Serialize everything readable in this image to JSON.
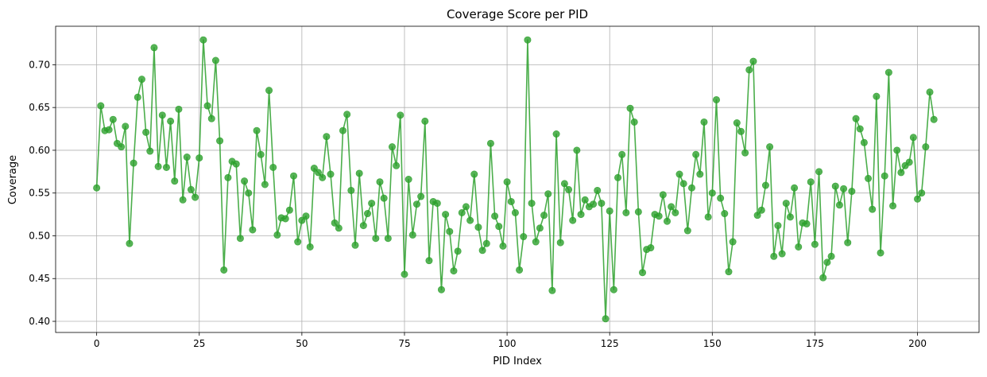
{
  "chart_data": {
    "type": "line",
    "title": "Coverage Score per PID",
    "xlabel": "PID Index",
    "ylabel": "Coverage",
    "xlim": [
      -10,
      215
    ],
    "ylim": [
      0.387,
      0.745
    ],
    "xticks": [
      0,
      25,
      50,
      75,
      100,
      125,
      150,
      175,
      200
    ],
    "yticks": [
      0.4,
      0.45,
      0.5,
      0.55,
      0.6,
      0.65,
      0.7
    ],
    "ytick_labels": [
      "0.40",
      "0.45",
      "0.50",
      "0.55",
      "0.60",
      "0.65",
      "0.70"
    ],
    "grid": true,
    "marker": "circle",
    "color": "#2ca02c",
    "series": [
      {
        "x": [
          0,
          1,
          2,
          3,
          4,
          5,
          6,
          7,
          8,
          9,
          10,
          11,
          12,
          13,
          14,
          15,
          16,
          17,
          18,
          19,
          20,
          21,
          22,
          23,
          24,
          25,
          26,
          27,
          28,
          29,
          30,
          31,
          32,
          33,
          34,
          35,
          36,
          37,
          38,
          39,
          40,
          41,
          42,
          43,
          44,
          45,
          46,
          47,
          48,
          49,
          50,
          51,
          52,
          53,
          54,
          55,
          56,
          57,
          58,
          59,
          60,
          61,
          62,
          63,
          64,
          65,
          66,
          67,
          68,
          69,
          70,
          71,
          72,
          73,
          74,
          75,
          76,
          77,
          78,
          79,
          80,
          81,
          82,
          83,
          84,
          85,
          86,
          87,
          88,
          89,
          90,
          91,
          92,
          93,
          94,
          95,
          96,
          97,
          98,
          99,
          100,
          101,
          102,
          103,
          104,
          105,
          106,
          107,
          108,
          109,
          110,
          111,
          112,
          113,
          114,
          115,
          116,
          117,
          118,
          119,
          120,
          121,
          122,
          123,
          124,
          125,
          126,
          127,
          128,
          129,
          130,
          131,
          132,
          133,
          134,
          135,
          136,
          137,
          138,
          139,
          140,
          141,
          142,
          143,
          144,
          145,
          146,
          147,
          148,
          149,
          150,
          151,
          152,
          153,
          154,
          155,
          156,
          157,
          158,
          159,
          160,
          161,
          162,
          163,
          164,
          165,
          166,
          167,
          168,
          169,
          170,
          171,
          172,
          173,
          174,
          175,
          176,
          177,
          178,
          179,
          180,
          181,
          182,
          183,
          184,
          185,
          186,
          187,
          188,
          189,
          190,
          191,
          192,
          193,
          194,
          195,
          196,
          197,
          198,
          199,
          200,
          201,
          202,
          203,
          204
        ],
        "values": [
          0.556,
          0.652,
          0.623,
          0.624,
          0.636,
          0.608,
          0.604,
          0.628,
          0.491,
          0.585,
          0.662,
          0.683,
          0.621,
          0.599,
          0.72,
          0.581,
          0.641,
          0.58,
          0.634,
          0.564,
          0.648,
          0.542,
          0.592,
          0.554,
          0.545,
          0.591,
          0.729,
          0.652,
          0.637,
          0.705,
          0.611,
          0.46,
          0.568,
          0.587,
          0.584,
          0.497,
          0.564,
          0.55,
          0.507,
          0.623,
          0.595,
          0.56,
          0.67,
          0.58,
          0.501,
          0.521,
          0.52,
          0.53,
          0.57,
          0.493,
          0.518,
          0.523,
          0.487,
          0.579,
          0.574,
          0.568,
          0.616,
          0.572,
          0.515,
          0.509,
          0.623,
          0.642,
          0.553,
          0.489,
          0.573,
          0.512,
          0.526,
          0.538,
          0.497,
          0.563,
          0.544,
          0.497,
          0.604,
          0.582,
          0.641,
          0.455,
          0.566,
          0.501,
          0.537,
          0.546,
          0.634,
          0.471,
          0.54,
          0.538,
          0.437,
          0.525,
          0.505,
          0.459,
          0.482,
          0.527,
          0.534,
          0.518,
          0.572,
          0.51,
          0.483,
          0.491,
          0.608,
          0.523,
          0.511,
          0.488,
          0.563,
          0.54,
          0.527,
          0.46,
          0.499,
          0.729,
          0.538,
          0.493,
          0.509,
          0.524,
          0.549,
          0.436,
          0.619,
          0.492,
          0.561,
          0.554,
          0.518,
          0.6,
          0.525,
          0.542,
          0.534,
          0.537,
          0.553,
          0.538,
          0.403,
          0.529,
          0.437,
          0.568,
          0.595,
          0.527,
          0.649,
          0.633,
          0.528,
          0.457,
          0.484,
          0.486,
          0.525,
          0.523,
          0.548,
          0.517,
          0.534,
          0.527,
          0.572,
          0.561,
          0.506,
          0.556,
          0.595,
          0.572,
          0.633,
          0.522,
          0.55,
          0.659,
          0.544,
          0.526,
          0.458,
          0.493,
          0.632,
          0.622,
          0.597,
          0.694,
          0.704,
          0.524,
          0.53,
          0.559,
          0.604,
          0.476,
          0.512,
          0.479,
          0.538,
          0.522,
          0.556,
          0.487,
          0.515,
          0.514,
          0.563,
          0.49,
          0.575,
          0.451,
          0.469,
          0.476,
          0.558,
          0.536,
          0.555,
          0.492,
          0.552,
          0.637,
          0.625,
          0.609,
          0.567,
          0.531,
          0.663,
          0.48,
          0.57,
          0.691,
          0.535,
          0.6,
          0.574,
          0.582,
          0.586,
          0.615,
          0.543,
          0.55,
          0.604,
          0.668,
          0.636
        ]
      }
    ]
  }
}
